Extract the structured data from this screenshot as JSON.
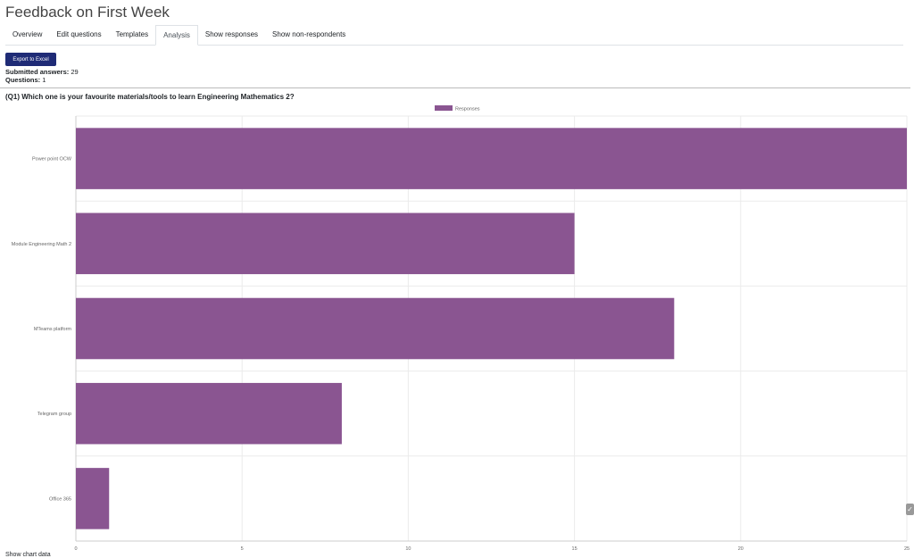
{
  "page": {
    "title": "Feedback on First Week"
  },
  "tabs": [
    {
      "label": "Overview"
    },
    {
      "label": "Edit questions"
    },
    {
      "label": "Templates"
    },
    {
      "label": "Analysis"
    },
    {
      "label": "Show responses"
    },
    {
      "label": "Show non-respondents"
    }
  ],
  "active_tab": "Analysis",
  "export_button": "Export to Excel",
  "summary": {
    "submitted_label": "Submitted answers:",
    "submitted_value": "29",
    "questions_label": "Questions:",
    "questions_value": "1"
  },
  "question": {
    "text": "(Q1) Which one is your favourite materials/tools to learn Engineering Mathematics 2?"
  },
  "colors": {
    "bar": "#8a5591",
    "button": "#1f2b76"
  },
  "chart_data": {
    "type": "bar",
    "orientation": "horizontal",
    "categories": [
      "Power point OCW",
      "Module Engineering Math 2",
      "MTeams platform",
      "Telegram group",
      "Office 365"
    ],
    "series": [
      {
        "name": "Responses",
        "values": [
          25,
          15,
          18,
          8,
          1
        ]
      }
    ],
    "xlim": [
      0,
      25
    ],
    "xticks": [
      "0",
      "5",
      "10",
      "15",
      "20",
      "25"
    ],
    "legend": "top-center",
    "grid": true
  },
  "footer": {
    "text": "Show chart data"
  }
}
